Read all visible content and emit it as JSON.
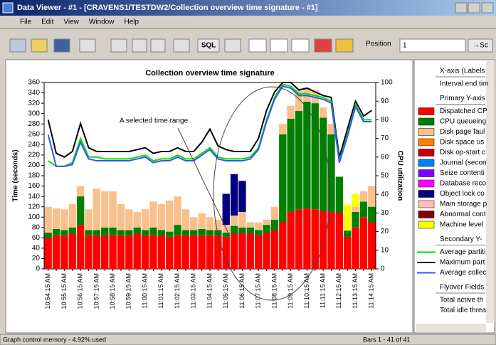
{
  "window": {
    "title": "Data Viewer - #1 - [CRAVENS1/TESTDW2/Collection overview time signature - #1]"
  },
  "menu": [
    "File",
    "Edit",
    "View",
    "Window",
    "Help"
  ],
  "toolbar": {
    "sql": "SQL",
    "position_label": "Position",
    "position_value": "1",
    "go": "→Sc"
  },
  "chart_data": {
    "type": "bar",
    "stacked": true,
    "title": "Collection overview time signature",
    "ylabel": "Time (seconds)",
    "y2label": "CPU utilization",
    "annotation": "A selected time range",
    "categories": [
      "10:54:15 AM",
      null,
      "10:55:15 AM",
      null,
      "10:56:15 AM",
      null,
      "10:57:15 AM",
      null,
      "10:58:15 AM",
      null,
      "10:59:15 AM",
      null,
      "11:00:15 AM",
      null,
      "11:01:15 AM",
      null,
      "11:02:15 AM",
      null,
      "11:03:15 AM",
      null,
      "11:04:15 AM",
      null,
      "11:05:15 AM",
      null,
      "11:06:15 AM",
      null,
      "11:07:15 AM",
      null,
      "11:08:15 AM",
      null,
      "11:09:15 AM",
      null,
      "11:10:15 AM",
      null,
      "11:11:15 AM",
      null,
      "11:12:15 AM",
      null,
      "11:13:15 AM",
      null,
      "11:14:15 AM"
    ],
    "ylim": [
      0,
      360
    ],
    "yticks": [
      0,
      20,
      40,
      60,
      80,
      100,
      120,
      140,
      160,
      180,
      200,
      220,
      240,
      260,
      280,
      300,
      320,
      340,
      360
    ],
    "y2lim": [
      0,
      100
    ],
    "y2ticks": [
      0,
      10,
      20,
      30,
      40,
      50,
      60,
      70,
      80,
      90,
      100
    ],
    "series": [
      {
        "color": "#ff0000",
        "values": [
          60,
          65,
          65,
          68,
          85,
          65,
          65,
          65,
          65,
          65,
          65,
          68,
          65,
          65,
          65,
          62,
          65,
          65,
          65,
          65,
          65,
          65,
          62,
          68,
          70,
          68,
          65,
          70,
          75,
          90,
          110,
          115,
          118,
          115,
          112,
          110,
          108,
          62,
          80,
          100,
          90
        ]
      },
      {
        "color": "#008000",
        "values": [
          10,
          12,
          10,
          12,
          55,
          10,
          10,
          15,
          15,
          10,
          10,
          12,
          10,
          15,
          10,
          10,
          20,
          10,
          10,
          12,
          10,
          10,
          8,
          15,
          10,
          12,
          10,
          15,
          20,
          170,
          180,
          190,
          205,
          205,
          180,
          150,
          70,
          12,
          30,
          30,
          30
        ]
      },
      {
        "color": "#f9c08c",
        "values": [
          50,
          40,
          40,
          45,
          20,
          40,
          80,
          70,
          70,
          50,
          40,
          30,
          40,
          50,
          50,
          60,
          55,
          40,
          25,
          30,
          25,
          20,
          15,
          20,
          30,
          10,
          15,
          10,
          25,
          20,
          25,
          40,
          25,
          25,
          20,
          20,
          0,
          0,
          10,
          20,
          40
        ]
      },
      {
        "color": "#000080",
        "values": [
          0,
          0,
          0,
          0,
          0,
          0,
          0,
          0,
          0,
          0,
          0,
          0,
          0,
          0,
          0,
          0,
          0,
          0,
          0,
          0,
          0,
          0,
          60,
          80,
          60,
          0,
          0,
          0,
          0,
          0,
          0,
          0,
          0,
          0,
          0,
          0,
          0,
          0,
          0,
          0,
          0
        ]
      },
      {
        "color": "#ffff00",
        "values": [
          0,
          0,
          0,
          0,
          0,
          0,
          0,
          0,
          0,
          0,
          0,
          0,
          0,
          0,
          0,
          0,
          0,
          0,
          0,
          0,
          0,
          0,
          0,
          0,
          0,
          0,
          0,
          0,
          0,
          0,
          0,
          0,
          0,
          0,
          0,
          0,
          0,
          50,
          25,
          0,
          0
        ]
      },
      {
        "color": "#000000",
        "axis": "y2",
        "values": [
          80,
          62,
          60,
          63,
          78,
          65,
          63,
          63,
          63,
          63,
          63,
          64,
          65,
          62,
          63,
          63,
          65,
          63,
          63,
          68,
          75,
          66,
          64,
          63,
          63,
          63,
          70,
          85,
          95,
          100,
          100,
          96,
          97,
          95,
          93,
          92,
          60,
          75,
          90,
          82,
          85
        ]
      },
      {
        "color": "#00dd00",
        "axis": "y2",
        "values": [
          58,
          55,
          55,
          57,
          70,
          60,
          60,
          59,
          59,
          59,
          59,
          60,
          61,
          58,
          59,
          59,
          61,
          59,
          59,
          62,
          65,
          60,
          59,
          59,
          59,
          60,
          65,
          80,
          92,
          99,
          98,
          94,
          94,
          93,
          92,
          90,
          58,
          72,
          88,
          80,
          80
        ]
      },
      {
        "color": "#3355ff",
        "axis": "y2",
        "values": [
          72,
          55,
          55,
          56,
          68,
          59,
          58,
          58,
          58,
          58,
          58,
          59,
          60,
          57,
          58,
          58,
          60,
          58,
          58,
          61,
          64,
          59,
          58,
          58,
          58,
          59,
          64,
          79,
          91,
          98,
          97,
          93,
          93,
          92,
          91,
          89,
          57,
          71,
          87,
          79,
          79
        ]
      }
    ]
  },
  "legend_panel": {
    "sections": [
      {
        "heading": "X-axis (Labels",
        "items": [
          {
            "label": "Interval end tim"
          }
        ]
      },
      {
        "heading": "Primary Y-axis",
        "items": [
          {
            "label": "Dispatched CP",
            "color": "#ff0000"
          },
          {
            "label": "CPU queueing",
            "color": "#008000"
          },
          {
            "label": "Disk page faul",
            "color": "#f9c08c"
          },
          {
            "label": "Disk space us",
            "color": "#ff8000"
          },
          {
            "label": "Disk op-start c",
            "color": "#c00000"
          },
          {
            "label": "Journal (secon",
            "color": "#0080ff"
          },
          {
            "label": "Seize contenti",
            "color": "#8000ff"
          },
          {
            "label": "Database reco",
            "color": "#ff00ff"
          },
          {
            "label": "Object lock co",
            "color": "#000080"
          },
          {
            "label": "Main storage p",
            "color": "#ffc0c0"
          },
          {
            "label": "Abnormal cont",
            "color": "#800000"
          },
          {
            "label": "Machine level",
            "color": "#ffff00"
          }
        ]
      },
      {
        "heading": "Secondary Y-",
        "items": [
          {
            "label": "Average partiti",
            "color": "#00dd00",
            "style": "line"
          },
          {
            "label": "Maximum part",
            "color": "#000000",
            "style": "line"
          },
          {
            "label": "Average collec",
            "color": "#3355ff",
            "style": "line"
          }
        ]
      },
      {
        "heading": "Flyover Fields",
        "items": [
          {
            "label": "Total active th"
          },
          {
            "label": "Total idle threa"
          }
        ]
      }
    ]
  },
  "status": {
    "left": "Graph control memory - 4.92% used",
    "right": "Bars 1 - 41 of 41"
  }
}
